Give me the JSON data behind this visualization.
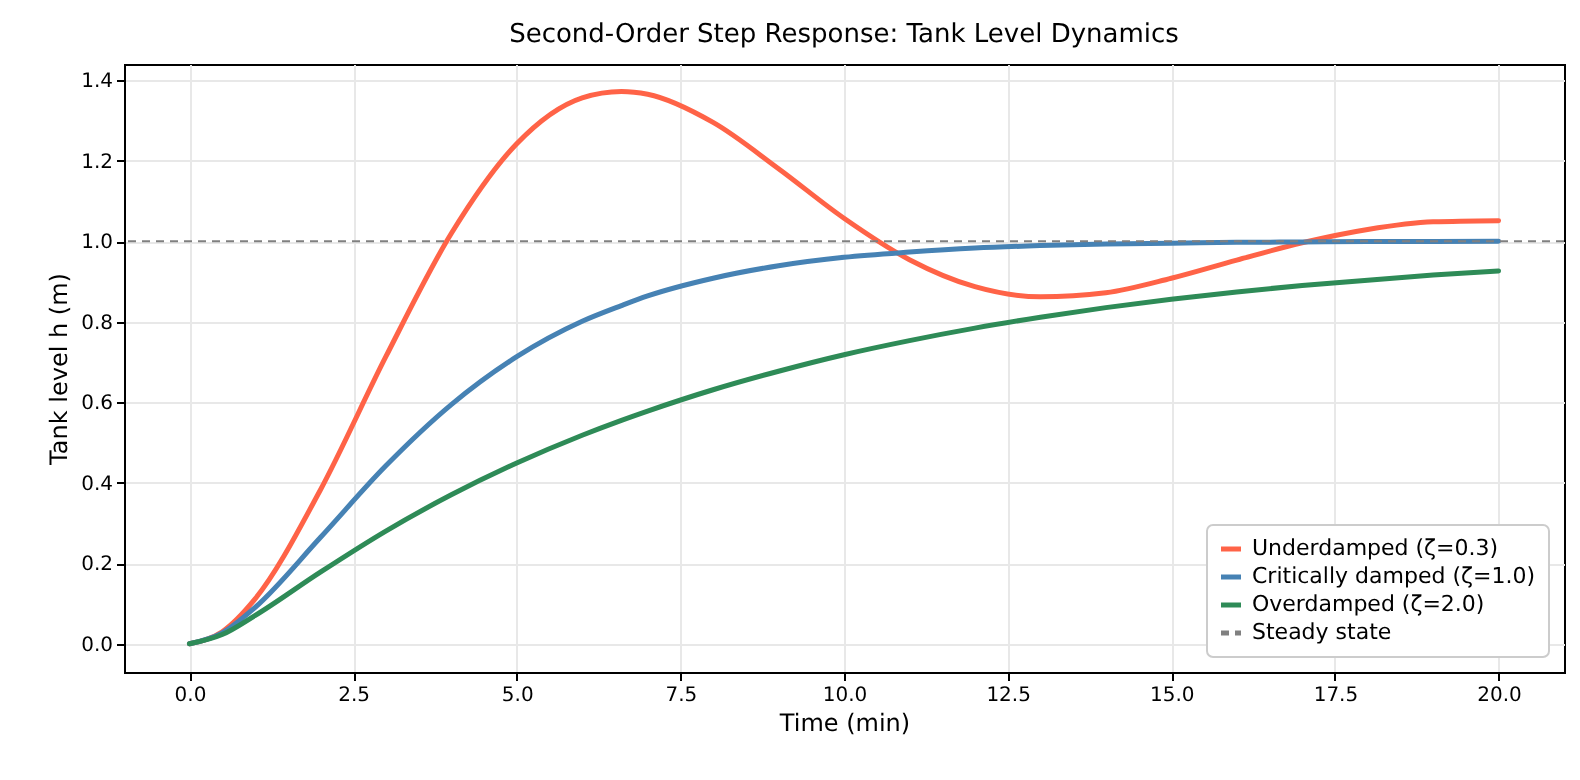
{
  "chart_data": {
    "type": "line",
    "title": "Second-Order Step Response: Tank Level Dynamics",
    "xlabel": "Time (min)",
    "ylabel": "Tank level  h  (m)",
    "x": [
      0,
      0.5,
      1,
      2,
      3,
      4,
      5,
      6,
      6.6,
      7,
      8,
      9,
      10,
      11,
      12,
      13,
      14,
      15,
      16,
      17,
      18,
      19,
      20
    ],
    "series": [
      {
        "name": "Underdamped (ζ=0.3)",
        "color": "#ff6347",
        "values": [
          0,
          0.03,
          0.111,
          0.382,
          0.713,
          1.019,
          1.242,
          1.356,
          1.372,
          1.365,
          1.295,
          1.18,
          1.057,
          0.954,
          0.887,
          0.862,
          0.872,
          0.908,
          0.953,
          0.996,
          1.029,
          1.048,
          1.051
        ]
      },
      {
        "name": "Critically damped (ζ=1.0)",
        "color": "#4682b4",
        "values": [
          0,
          0.027,
          0.09,
          0.264,
          0.442,
          0.594,
          0.713,
          0.801,
          0.84,
          0.864,
          0.908,
          0.939,
          0.96,
          0.973,
          0.983,
          0.989,
          0.993,
          0.995,
          0.997,
          0.998,
          0.999,
          0.999,
          1.0
        ]
      },
      {
        "name": "Overdamped (ζ=2.0)",
        "color": "#2e8b57",
        "values": [
          0,
          0.023,
          0.07,
          0.178,
          0.28,
          0.37,
          0.449,
          0.518,
          0.555,
          0.578,
          0.631,
          0.677,
          0.718,
          0.753,
          0.784,
          0.811,
          0.835,
          0.856,
          0.874,
          0.89,
          0.903,
          0.916,
          0.926
        ]
      }
    ],
    "ref_lines": [
      {
        "axis": "y",
        "value": 1.0,
        "label": "Steady state",
        "color": "#808080",
        "line_style": "dashed"
      }
    ],
    "xlim": [
      -1,
      21
    ],
    "ylim": [
      -0.07,
      1.44
    ],
    "xticks": [
      {
        "value": 0,
        "label": "0.0"
      },
      2.5,
      {
        "value": 5,
        "label": "5.0"
      },
      7.5,
      {
        "value": 10,
        "label": "10.0"
      },
      12.5,
      {
        "value": 15,
        "label": "15.0"
      },
      17.5,
      {
        "value": 20,
        "label": "20.0"
      }
    ],
    "yticks": [
      {
        "value": 0,
        "label": "0.0"
      },
      0.2,
      0.4,
      0.6,
      0.8,
      {
        "value": 1,
        "label": "1.0"
      },
      1.2,
      1.4
    ],
    "grid": true,
    "legend": "bottom right"
  }
}
